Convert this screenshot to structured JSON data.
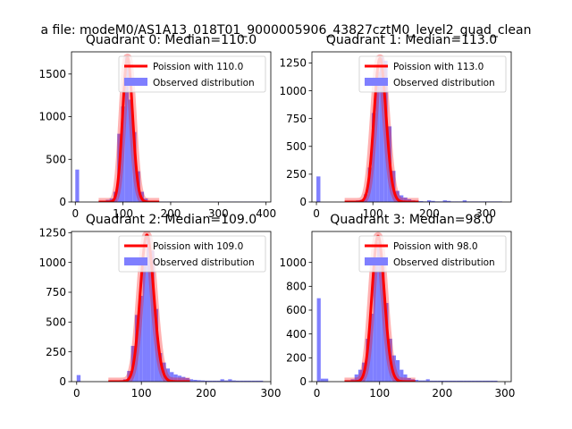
{
  "figure": {
    "suptitle": "a file: modeM0/AS1A13_018T01_9000005906_43827cztM0_level2_quad_clean"
  },
  "colors": {
    "hist": "#7f7fff",
    "fit": "#ff0000",
    "axis": "#000000"
  },
  "chart_data": [
    {
      "type": "bar",
      "title": "Quadrant 0: Median=110.0",
      "xlim": [
        -8,
        410
      ],
      "ylim": [
        0,
        1760
      ],
      "xticks": [
        0,
        100,
        200,
        300,
        400
      ],
      "yticks": [
        0,
        500,
        1000,
        1500
      ],
      "legend": {
        "location": "top-right",
        "entries": [
          "Poission with 110.0",
          "Observed distribution"
        ]
      },
      "series": [
        {
          "name": "Observed distribution",
          "kind": "histogram",
          "bin_width": 8,
          "bins": [
            [
              0,
              380
            ],
            [
              48,
              5
            ],
            [
              56,
              10
            ],
            [
              64,
              25
            ],
            [
              72,
              40
            ],
            [
              80,
              120
            ],
            [
              88,
              800
            ],
            [
              96,
              1120
            ],
            [
              104,
              1700
            ],
            [
              112,
              1200
            ],
            [
              120,
              820
            ],
            [
              128,
              360
            ],
            [
              136,
              120
            ],
            [
              144,
              40
            ],
            [
              152,
              15
            ],
            [
              160,
              8
            ],
            [
              168,
              5
            ],
            [
              176,
              5
            ],
            [
              184,
              5
            ],
            [
              192,
              5
            ],
            [
              200,
              5
            ],
            [
              208,
              4
            ],
            [
              216,
              4
            ],
            [
              224,
              4
            ],
            [
              232,
              4
            ],
            [
              240,
              4
            ],
            [
              248,
              4
            ],
            [
              256,
              4
            ],
            [
              264,
              4
            ],
            [
              272,
              4
            ],
            [
              280,
              4
            ],
            [
              288,
              4
            ],
            [
              296,
              4
            ],
            [
              304,
              4
            ],
            [
              312,
              4
            ],
            [
              320,
              4
            ],
            [
              328,
              4
            ],
            [
              336,
              4
            ],
            [
              344,
              4
            ],
            [
              352,
              4
            ],
            [
              360,
              4
            ],
            [
              368,
              4
            ],
            [
              376,
              4
            ],
            [
              384,
              4
            ],
            [
              392,
              4
            ]
          ]
        },
        {
          "name": "Poission with 110.0",
          "kind": "poisson",
          "lambda": 110.0,
          "peak": 1690
        }
      ]
    },
    {
      "type": "bar",
      "title": "Quadrant 1: Median=113.0",
      "xlim": [
        -8,
        345
      ],
      "ylim": [
        0,
        1350
      ],
      "xticks": [
        0,
        100,
        200,
        300
      ],
      "yticks": [
        0,
        250,
        500,
        750,
        1000,
        1250
      ],
      "legend": {
        "location": "top-right",
        "entries": [
          "Poission with 113.0",
          "Observed distribution"
        ]
      },
      "series": [
        {
          "name": "Observed distribution",
          "kind": "histogram",
          "bin_width": 7,
          "bins": [
            [
              0,
              230
            ],
            [
              56,
              4
            ],
            [
              63,
              8
            ],
            [
              70,
              15
            ],
            [
              77,
              20
            ],
            [
              84,
              70
            ],
            [
              91,
              310
            ],
            [
              98,
              800
            ],
            [
              105,
              1170
            ],
            [
              112,
              1300
            ],
            [
              119,
              1270
            ],
            [
              126,
              680
            ],
            [
              133,
              280
            ],
            [
              140,
              100
            ],
            [
              147,
              60
            ],
            [
              154,
              40
            ],
            [
              161,
              25
            ],
            [
              168,
              15
            ],
            [
              175,
              10
            ],
            [
              182,
              8
            ],
            [
              189,
              5
            ],
            [
              196,
              15
            ],
            [
              203,
              10
            ],
            [
              210,
              5
            ],
            [
              217,
              5
            ],
            [
              224,
              15
            ],
            [
              231,
              10
            ],
            [
              238,
              5
            ],
            [
              245,
              5
            ],
            [
              252,
              5
            ],
            [
              259,
              15
            ],
            [
              266,
              5
            ],
            [
              273,
              5
            ],
            [
              280,
              5
            ],
            [
              287,
              5
            ],
            [
              294,
              5
            ],
            [
              301,
              5
            ],
            [
              308,
              5
            ],
            [
              315,
              5
            ],
            [
              322,
              5
            ]
          ]
        },
        {
          "name": "Poission with 113.0",
          "kind": "poisson",
          "lambda": 113.0,
          "peak": 1290
        }
      ]
    },
    {
      "type": "bar",
      "title": "Quadrant 2: Median=109.0",
      "xlim": [
        -8,
        300
      ],
      "ylim": [
        0,
        1260
      ],
      "xticks": [
        0,
        100,
        200,
        300
      ],
      "yticks": [
        0,
        250,
        500,
        750,
        1000,
        1250
      ],
      "legend": {
        "location": "top-right",
        "entries": [
          "Poission with 109.0",
          "Observed distribution"
        ]
      },
      "series": [
        {
          "name": "Observed distribution",
          "kind": "histogram",
          "bin_width": 6,
          "bins": [
            [
              0,
              55
            ],
            [
              54,
              3
            ],
            [
              60,
              6
            ],
            [
              66,
              12
            ],
            [
              72,
              20
            ],
            [
              78,
              90
            ],
            [
              84,
              300
            ],
            [
              90,
              560
            ],
            [
              96,
              720
            ],
            [
              102,
              1000
            ],
            [
              108,
              1210
            ],
            [
              114,
              1100
            ],
            [
              120,
              610
            ],
            [
              126,
              240
            ],
            [
              132,
              160
            ],
            [
              138,
              110
            ],
            [
              144,
              80
            ],
            [
              150,
              60
            ],
            [
              156,
              50
            ],
            [
              162,
              40
            ],
            [
              168,
              30
            ],
            [
              174,
              20
            ],
            [
              180,
              15
            ],
            [
              186,
              12
            ],
            [
              192,
              10
            ],
            [
              198,
              8
            ],
            [
              204,
              8
            ],
            [
              210,
              8
            ],
            [
              216,
              8
            ],
            [
              222,
              20
            ],
            [
              228,
              10
            ],
            [
              234,
              20
            ],
            [
              240,
              10
            ],
            [
              246,
              8
            ],
            [
              252,
              8
            ],
            [
              258,
              8
            ],
            [
              264,
              8
            ],
            [
              270,
              8
            ],
            [
              276,
              8
            ],
            [
              282,
              8
            ]
          ]
        },
        {
          "name": "Poission with 109.0",
          "kind": "poisson",
          "lambda": 109.0,
          "peak": 1230
        }
      ]
    },
    {
      "type": "bar",
      "title": "Quadrant 3: Median=98.0",
      "xlim": [
        -8,
        310
      ],
      "ylim": [
        0,
        1260
      ],
      "xticks": [
        0,
        100,
        200,
        300
      ],
      "yticks": [
        0,
        200,
        400,
        600,
        800,
        1000
      ],
      "legend": {
        "location": "top-right",
        "entries": [
          "Poission with 98.0",
          "Observed distribution"
        ]
      },
      "series": [
        {
          "name": "Observed distribution",
          "kind": "histogram",
          "bin_width": 6,
          "bins": [
            [
              0,
              700
            ],
            [
              6,
              25
            ],
            [
              12,
              25
            ],
            [
              48,
              8
            ],
            [
              54,
              20
            ],
            [
              60,
              60
            ],
            [
              66,
              100
            ],
            [
              72,
              160
            ],
            [
              78,
              360
            ],
            [
              84,
              570
            ],
            [
              90,
              1030
            ],
            [
              96,
              1170
            ],
            [
              102,
              1040
            ],
            [
              108,
              660
            ],
            [
              114,
              360
            ],
            [
              120,
              220
            ],
            [
              126,
              180
            ],
            [
              132,
              100
            ],
            [
              138,
              60
            ],
            [
              144,
              30
            ],
            [
              150,
              20
            ],
            [
              156,
              15
            ],
            [
              162,
              10
            ],
            [
              168,
              10
            ],
            [
              174,
              20
            ],
            [
              180,
              8
            ],
            [
              186,
              8
            ],
            [
              192,
              8
            ],
            [
              198,
              8
            ],
            [
              204,
              8
            ],
            [
              210,
              8
            ],
            [
              216,
              8
            ],
            [
              222,
              8
            ],
            [
              228,
              8
            ],
            [
              234,
              8
            ],
            [
              240,
              8
            ],
            [
              246,
              8
            ],
            [
              252,
              8
            ],
            [
              258,
              8
            ],
            [
              264,
              8
            ],
            [
              270,
              8
            ],
            [
              276,
              8
            ],
            [
              282,
              8
            ]
          ]
        },
        {
          "name": "Poission with 98.0",
          "kind": "poisson",
          "lambda": 98.0,
          "peak": 1220
        }
      ]
    }
  ]
}
